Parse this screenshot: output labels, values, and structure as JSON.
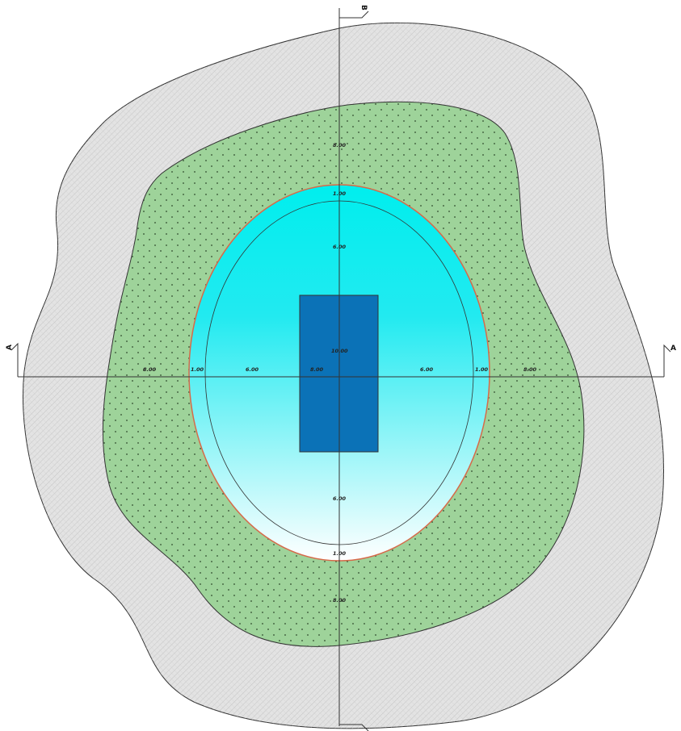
{
  "colors": {
    "background": "#ffffff",
    "outer_zone_fill": "#e3e3e3",
    "outer_zone_hatch": "#bdbdbd",
    "green_zone_fill": "#9ed39a",
    "green_zone_dots": "#2e4a2b",
    "pool_fill_top": "#00eeee",
    "pool_fill_bottom": "#ffffff",
    "pool_rim": "#d66a4a",
    "inner_rect_fill": "#0b72b7",
    "line": "#333333"
  },
  "sections": {
    "a_right": "A",
    "a_left": "A",
    "b_top": "B",
    "b_bottom": "B"
  },
  "dimensions": {
    "top_outer": "8.00",
    "top_rim": "1.00",
    "top_inner": "6.00",
    "center": "10.00",
    "bottom_inner": "6.00",
    "bottom_rim": "1.00",
    "bottom_outer": "8.00",
    "left_outer": "8.00",
    "left_rim": "1.00",
    "left_inner": "6.00",
    "left_center": "8.00",
    "right_inner": "6.00",
    "right_rim": "1.00",
    "right_outer": "8.00"
  }
}
